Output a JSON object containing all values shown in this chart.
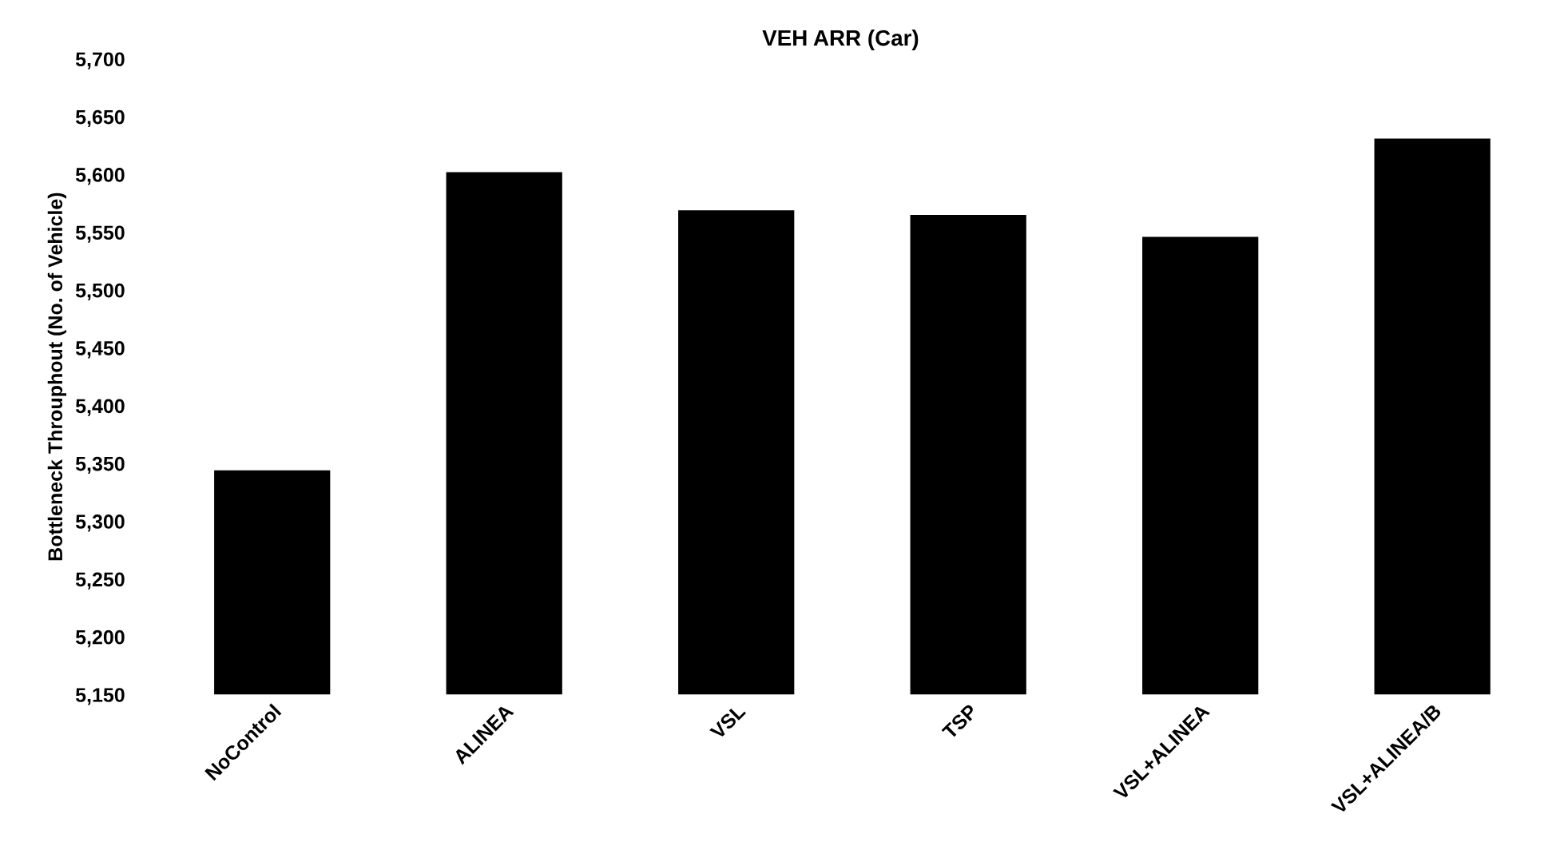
{
  "chart_data": {
    "type": "bar",
    "title": "VEH ARR (Car)",
    "ylabel": "Bottleneck Throuphout (No. of Vehicle)",
    "categories": [
      "NoControl",
      "ALINEA",
      "VSL",
      "TSP",
      "VSL+ALINEA",
      "VSL+ALINEA/B"
    ],
    "values": [
      5344,
      5602,
      5569,
      5565,
      5546,
      5631
    ],
    "color": "#000000",
    "ylim": [
      5150,
      5700
    ],
    "yticks": [
      {
        "value": 5150,
        "label": "5,150"
      },
      {
        "value": 5200,
        "label": "5,200"
      },
      {
        "value": 5250,
        "label": "5,250"
      },
      {
        "value": 5300,
        "label": "5,300"
      },
      {
        "value": 5350,
        "label": "5,350"
      },
      {
        "value": 5400,
        "label": "5,400"
      },
      {
        "value": 5450,
        "label": "5,450"
      },
      {
        "value": 5500,
        "label": "5,500"
      },
      {
        "value": 5550,
        "label": "5,550"
      },
      {
        "value": 5600,
        "label": "5,600"
      },
      {
        "value": 5650,
        "label": "5,650"
      },
      {
        "value": 5700,
        "label": "5,700"
      }
    ],
    "grid": false
  }
}
